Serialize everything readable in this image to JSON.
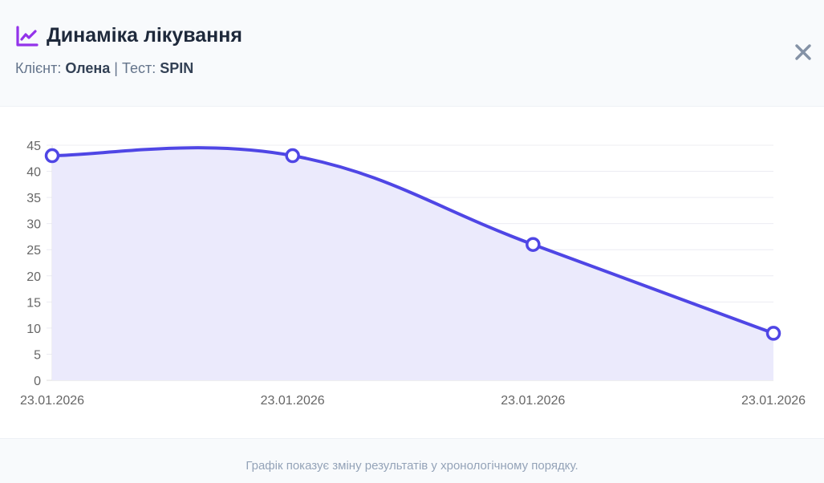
{
  "header": {
    "title": "Динаміка лікування",
    "icon": "chart-line-icon",
    "client_label": "Клієнт:",
    "client_name": "Олена",
    "separator": "|",
    "test_label": "Тест:",
    "test_name": "SPIN",
    "close_icon": "close-icon"
  },
  "colors": {
    "accent": "#4f46e5",
    "fill": "#ebeafc",
    "icon": "#9333ea"
  },
  "footer": {
    "note": "Графік показує зміну результатів у хронологічному порядку."
  },
  "chart_data": {
    "type": "line",
    "title": "Динаміка лікування",
    "categories": [
      "23.01.2026",
      "23.01.2026",
      "23.01.2026",
      "23.01.2026"
    ],
    "series": [
      {
        "name": "SPIN",
        "values": [
          43,
          43,
          26,
          9
        ]
      }
    ],
    "xlabel": "",
    "ylabel": "",
    "ylim": [
      0,
      45
    ],
    "yticks": [
      0,
      5,
      10,
      15,
      20,
      25,
      30,
      35,
      40,
      45
    ],
    "grid": true,
    "legend": "none",
    "fill": true,
    "smooth": true
  }
}
